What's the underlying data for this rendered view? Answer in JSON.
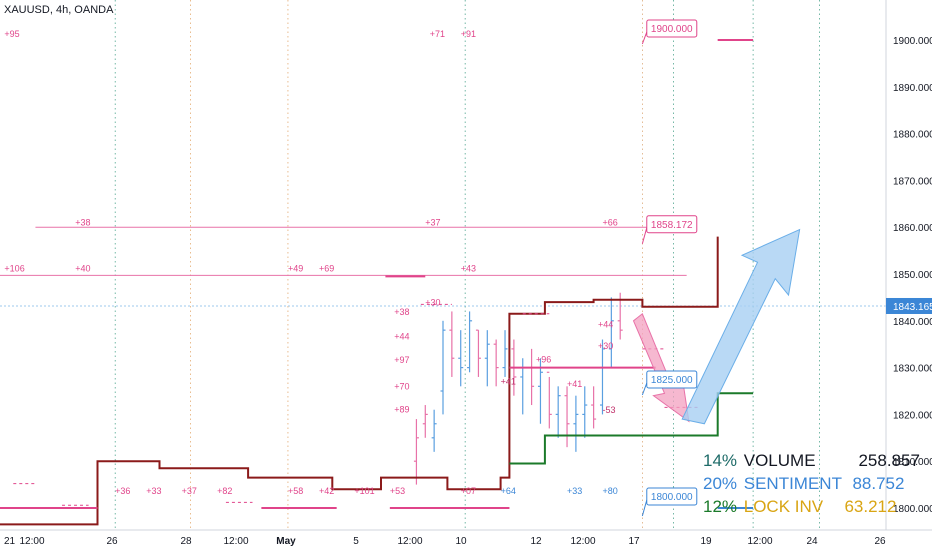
{
  "title": "XAUUSD, 4h, OANDA",
  "colors": {
    "maroon": "#8b1a1a",
    "pink": "#e0448a",
    "pinkLine": "#e872a8",
    "green": "#1b7a2a",
    "blue": "#3b86d6",
    "grid": "#3a9a80",
    "teal": "#1e6b68",
    "gold": "#d9a514"
  },
  "chart_data": {
    "type": "line",
    "symbol": "XAUUSD",
    "interval": "4h",
    "broker": "OANDA",
    "ylim": [
      1796,
      1906
    ],
    "y_ticks": [
      "1900.000",
      "1890.000",
      "1880.000",
      "1870.000",
      "1860.000",
      "1850.000",
      "1840.000",
      "1830.000",
      "1820.000",
      "1810.000",
      "1800.000"
    ],
    "x_ticks": [
      "21",
      "12:00",
      "26",
      "28",
      "12:00",
      "May",
      "5",
      "12:00",
      "10",
      "12",
      "12:00",
      "17",
      "19",
      "12:00",
      "24",
      "26"
    ],
    "current_price": "1843.165",
    "price_labels": [
      {
        "text": "1900.000",
        "price": 1900.0,
        "color": "pink"
      },
      {
        "text": "1858.172",
        "price": 1858.172,
        "color": "pink"
      },
      {
        "text": "1825.000",
        "price": 1825.0,
        "color": "blue"
      },
      {
        "text": "1800.000",
        "price": 1800.0,
        "color": "blue"
      }
    ],
    "horizontal_levels": [
      {
        "price": 1860.0,
        "color": "pinkLine"
      },
      {
        "price": 1849.7,
        "color": "pinkLine"
      }
    ],
    "series": [
      {
        "color": "maroon",
        "steps": [
          [
            0,
            1796.5
          ],
          [
            22,
            1796.5
          ],
          [
            22,
            1810
          ],
          [
            36,
            1810
          ],
          [
            36,
            1808.5
          ],
          [
            56,
            1808.5
          ],
          [
            56,
            1806.5
          ],
          [
            75,
            1806.5
          ],
          [
            75,
            1804
          ],
          [
            86,
            1804
          ],
          [
            86,
            1806.5
          ],
          [
            101,
            1806.5
          ],
          [
            101,
            1804
          ],
          [
            113,
            1804
          ],
          [
            113,
            1806.5
          ],
          [
            115,
            1806.5
          ],
          [
            115,
            1841.5
          ],
          [
            123,
            1841.5
          ],
          [
            123,
            1844
          ],
          [
            134,
            1844
          ],
          [
            134,
            1844.5
          ],
          [
            145,
            1844.5
          ],
          [
            145,
            1843
          ],
          [
            162,
            1843
          ],
          [
            162,
            1858
          ]
        ]
      },
      {
        "color": "green",
        "steps": [
          [
            115,
            1809.5
          ],
          [
            123,
            1809.5
          ],
          [
            123,
            1815.5
          ],
          [
            162,
            1815.5
          ],
          [
            162,
            1824.5
          ],
          [
            170,
            1824.5
          ]
        ]
      },
      {
        "color": "pink",
        "segments": [
          [
            0,
            1800,
            22,
            1800
          ],
          [
            59,
            1800,
            76,
            1800
          ],
          [
            87,
            1849.5,
            96,
            1849.5
          ],
          [
            88,
            1800,
            115,
            1800
          ],
          [
            115,
            1830,
            148,
            1830
          ],
          [
            162,
            1900,
            170,
            1900
          ]
        ]
      },
      {
        "color": "blue",
        "segments": [
          [
            162,
            1800,
            170,
            1800
          ]
        ]
      }
    ],
    "annotations": [
      "+95",
      "+71",
      "+91",
      "+38",
      "+37",
      "+66",
      "+106",
      "+40",
      "+49",
      "+69",
      "+43",
      "+38",
      "+44",
      "+97",
      "+70",
      "+89",
      "+41",
      "+96",
      "+30",
      "+44",
      "+41",
      "-53",
      "+36",
      "+33",
      "+37",
      "+82",
      "+58",
      "+42",
      "+101",
      "+53",
      "+07",
      "+64",
      "+33",
      "+80",
      "+30"
    ],
    "stats": [
      {
        "pct": "14%",
        "label": "VOLUME",
        "value": "258.857",
        "color": "teal"
      },
      {
        "pct": "20%",
        "label": "SENTIMENT",
        "value": "88.752",
        "color": "blue"
      },
      {
        "pct": "12%",
        "label": "LOCK INV",
        "value": "63.212",
        "color": "gold"
      }
    ]
  }
}
